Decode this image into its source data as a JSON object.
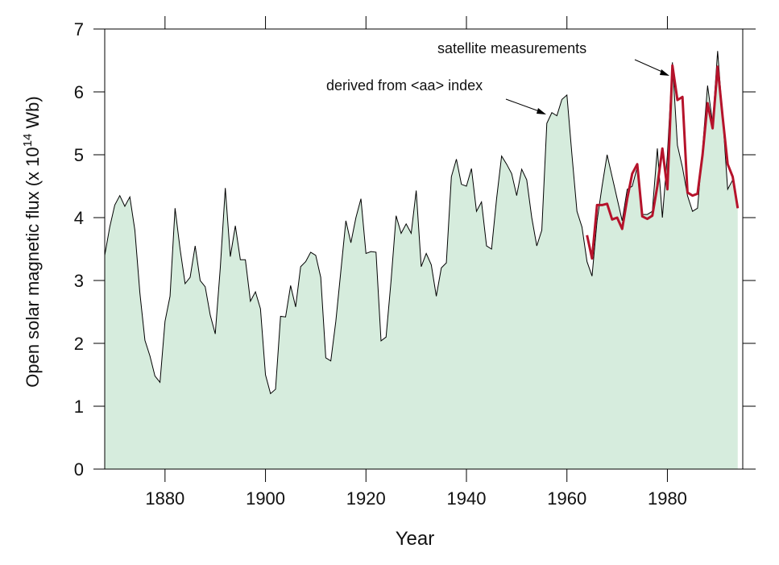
{
  "chart_data": {
    "type": "area",
    "xlabel": "Year",
    "ylabel": {
      "text": "Open solar magnetic flux (x 10",
      "superscript": "14",
      "unit": " Wb)"
    },
    "annotations": [
      "derived from <aa> index",
      "satellite measurements"
    ],
    "xlim": [
      1868,
      1995
    ],
    "xticks": [
      1880,
      1900,
      1920,
      1940,
      1960,
      1980
    ],
    "ylim": [
      0,
      7
    ],
    "yticks": [
      0,
      1,
      2,
      3,
      4,
      5,
      6,
      7
    ],
    "series": [
      {
        "type": "area",
        "color": "#000000",
        "fill": "#d6ecdd",
        "x": [
          1868,
          1869,
          1870,
          1871,
          1872,
          1873,
          1874,
          1875,
          1876,
          1877,
          1878,
          1879,
          1880,
          1881,
          1882,
          1883,
          1884,
          1885,
          1886,
          1887,
          1888,
          1889,
          1890,
          1891,
          1892,
          1893,
          1894,
          1895,
          1896,
          1897,
          1898,
          1899,
          1900,
          1901,
          1902,
          1903,
          1904,
          1905,
          1906,
          1907,
          1908,
          1909,
          1910,
          1911,
          1912,
          1913,
          1914,
          1915,
          1916,
          1917,
          1918,
          1919,
          1920,
          1921,
          1922,
          1923,
          1924,
          1925,
          1926,
          1927,
          1928,
          1929,
          1930,
          1931,
          1932,
          1933,
          1934,
          1935,
          1936,
          1937,
          1938,
          1939,
          1940,
          1941,
          1942,
          1943,
          1944,
          1945,
          1946,
          1947,
          1948,
          1949,
          1950,
          1951,
          1952,
          1953,
          1954,
          1955,
          1956,
          1957,
          1958,
          1959,
          1960,
          1961,
          1962,
          1963,
          1964,
          1965,
          1966,
          1967,
          1968,
          1969,
          1970,
          1971,
          1972,
          1973,
          1974,
          1975,
          1976,
          1977,
          1978,
          1979,
          1980,
          1981,
          1982,
          1983,
          1984,
          1985,
          1986,
          1987,
          1988,
          1989,
          1990,
          1991,
          1992,
          1993,
          1994
        ],
        "values": [
          3.4,
          3.85,
          4.2,
          4.35,
          4.18,
          4.33,
          3.8,
          2.8,
          2.05,
          1.8,
          1.48,
          1.38,
          2.35,
          2.75,
          4.15,
          3.5,
          2.95,
          3.05,
          3.55,
          3.0,
          2.9,
          2.45,
          2.15,
          3.2,
          4.47,
          3.38,
          3.87,
          3.33,
          3.33,
          2.67,
          2.82,
          2.55,
          1.5,
          1.2,
          1.27,
          2.43,
          2.42,
          2.92,
          2.58,
          3.22,
          3.3,
          3.45,
          3.4,
          3.05,
          1.77,
          1.72,
          2.35,
          3.15,
          3.95,
          3.6,
          4.0,
          4.3,
          3.43,
          3.46,
          3.45,
          2.04,
          2.1,
          3.0,
          4.03,
          3.75,
          3.9,
          3.75,
          4.43,
          3.22,
          3.43,
          3.25,
          2.75,
          3.2,
          3.28,
          4.65,
          4.93,
          4.53,
          4.5,
          4.78,
          4.1,
          4.25,
          3.55,
          3.5,
          4.3,
          4.98,
          4.85,
          4.7,
          4.35,
          4.77,
          4.6,
          4.0,
          3.55,
          3.8,
          5.5,
          5.67,
          5.62,
          5.88,
          5.95,
          5.0,
          4.1,
          3.85,
          3.3,
          3.07,
          3.95,
          4.5,
          5.0,
          4.65,
          4.3,
          3.95,
          4.45,
          4.5,
          4.8,
          4.05,
          4.05,
          4.1,
          5.1,
          4.0,
          5.0,
          6.47,
          5.15,
          4.8,
          4.35,
          4.1,
          4.15,
          5.1,
          6.1,
          5.5,
          6.65,
          5.6,
          4.45,
          4.6,
          4.15
        ]
      },
      {
        "type": "line",
        "color": "#b5132b",
        "x": [
          1964,
          1965,
          1966,
          1967,
          1968,
          1969,
          1970,
          1971,
          1972,
          1973,
          1974,
          1975,
          1976,
          1977,
          1978,
          1979,
          1980,
          1981,
          1982,
          1983,
          1984,
          1985,
          1986,
          1987,
          1988,
          1989,
          1990,
          1991,
          1992,
          1993,
          1994
        ],
        "values": [
          3.72,
          3.35,
          4.2,
          4.2,
          4.22,
          3.97,
          4.0,
          3.82,
          4.3,
          4.7,
          4.85,
          4.02,
          3.98,
          4.03,
          4.5,
          5.1,
          4.45,
          6.42,
          5.87,
          5.92,
          4.4,
          4.35,
          4.38,
          5.0,
          5.82,
          5.42,
          6.4,
          5.6,
          4.85,
          4.65,
          4.15
        ]
      }
    ]
  }
}
